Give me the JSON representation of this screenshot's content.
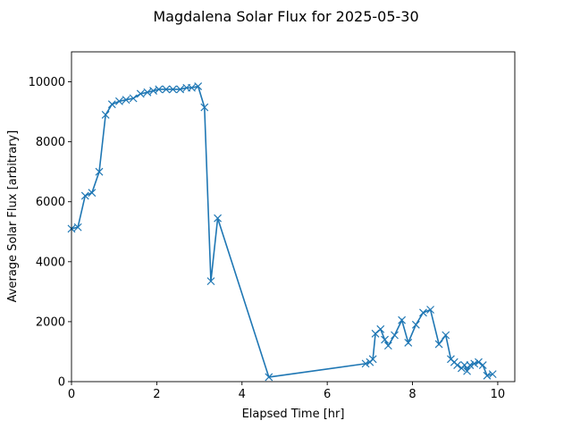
{
  "chart_data": {
    "type": "line",
    "title": "Magdalena Solar Flux for 2025-05-30",
    "xlabel": "Elapsed Time [hr]",
    "ylabel": "Average Solar Flux [arbitrary]",
    "xlim": [
      0,
      10.4
    ],
    "ylim": [
      0,
      11000
    ],
    "xticks": [
      "0",
      "2",
      "4",
      "6",
      "8",
      "10"
    ],
    "yticks": [
      "0",
      "2000",
      "4000",
      "6000",
      "8000",
      "10000"
    ],
    "grid": false,
    "legend": false,
    "colors": {
      "series": "#1f77b4"
    },
    "marker": "x",
    "series": [
      {
        "x": [
          0.0,
          0.15,
          0.32,
          0.48,
          0.65,
          0.8,
          0.95,
          1.12,
          1.28,
          1.45,
          1.62,
          1.78,
          1.92,
          2.05,
          2.22,
          2.38,
          2.55,
          2.7,
          2.82,
          2.97,
          3.12,
          3.27,
          3.43,
          4.63,
          6.9,
          7.0,
          7.07,
          7.13,
          7.25,
          7.35,
          7.43,
          7.58,
          7.75,
          7.9,
          8.08,
          8.25,
          8.42,
          8.62,
          8.78,
          8.9,
          8.98,
          9.05,
          9.15,
          9.22,
          9.28,
          9.35,
          9.45,
          9.55,
          9.65,
          9.75,
          9.88
        ],
        "y": [
          5100,
          5150,
          6200,
          6300,
          7000,
          8900,
          9250,
          9350,
          9400,
          9450,
          9600,
          9650,
          9700,
          9750,
          9750,
          9750,
          9750,
          9800,
          9800,
          9850,
          9150,
          3350,
          5450,
          150,
          600,
          650,
          750,
          1600,
          1750,
          1400,
          1200,
          1550,
          2050,
          1300,
          1900,
          2300,
          2400,
          1250,
          1550,
          750,
          650,
          550,
          450,
          550,
          350,
          550,
          600,
          650,
          550,
          200,
          250
        ]
      }
    ]
  }
}
